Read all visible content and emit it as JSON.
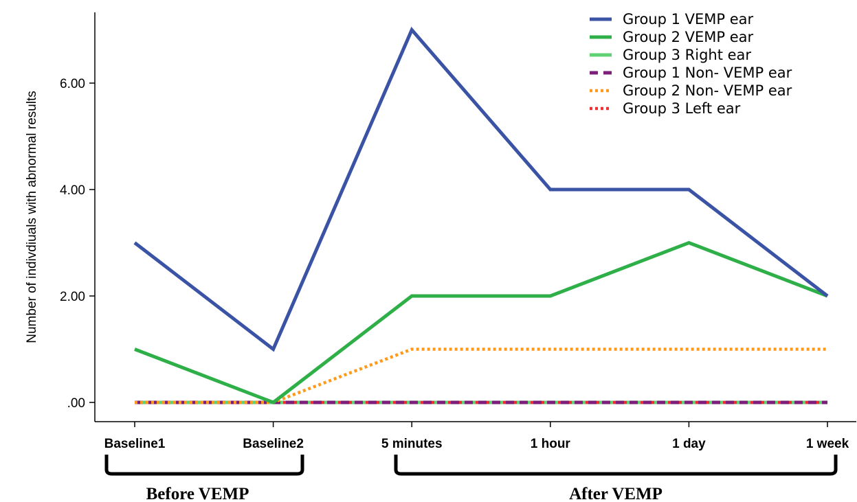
{
  "chart_data": {
    "type": "line",
    "ylabel": "Number of indivdiuals with abnormal results",
    "xlabel": "",
    "categories": [
      "Baseline1",
      "Baseline2",
      "5 minutes",
      "1 hour",
      "1 day",
      "1 week"
    ],
    "yticks": [
      0,
      2,
      4,
      6
    ],
    "ytick_labels": [
      ".00",
      "2.00",
      "4.00",
      "6.00"
    ],
    "ylim": [
      -0.38,
      7.4
    ],
    "grid": false,
    "legend_position": "top-right",
    "series": [
      {
        "name": "Group 1 VEMP ear",
        "values": [
          3,
          1,
          7,
          4,
          4,
          2
        ],
        "color": "#3a53a4",
        "style": "solid"
      },
      {
        "name": "Group 2 VEMP ear",
        "values": [
          1,
          0,
          2,
          2,
          3,
          2
        ],
        "color": "#2eaf48",
        "style": "solid"
      },
      {
        "name": "Group 3 Right ear",
        "values": [
          0,
          0,
          0,
          0,
          0,
          0
        ],
        "color": "#5fd173",
        "style": "solid"
      },
      {
        "name": "Group 1 Non- VEMP ear",
        "values": [
          0,
          0,
          0,
          0,
          0,
          0
        ],
        "color": "#7b1f7a",
        "style": "dashed"
      },
      {
        "name": "Group 2 Non- VEMP ear",
        "values": [
          0,
          0,
          1,
          1,
          1,
          1
        ],
        "color": "#ff9a1a",
        "style": "dotted"
      },
      {
        "name": "Group 3 Left ear",
        "values": [
          0,
          0,
          0,
          0,
          0,
          0
        ],
        "color": "#ee3033",
        "style": "dotted"
      }
    ],
    "brackets": [
      {
        "label": "Before VEMP",
        "from": 0,
        "to": 1
      },
      {
        "label": "After VEMP",
        "from": 2,
        "to": 5
      }
    ]
  }
}
